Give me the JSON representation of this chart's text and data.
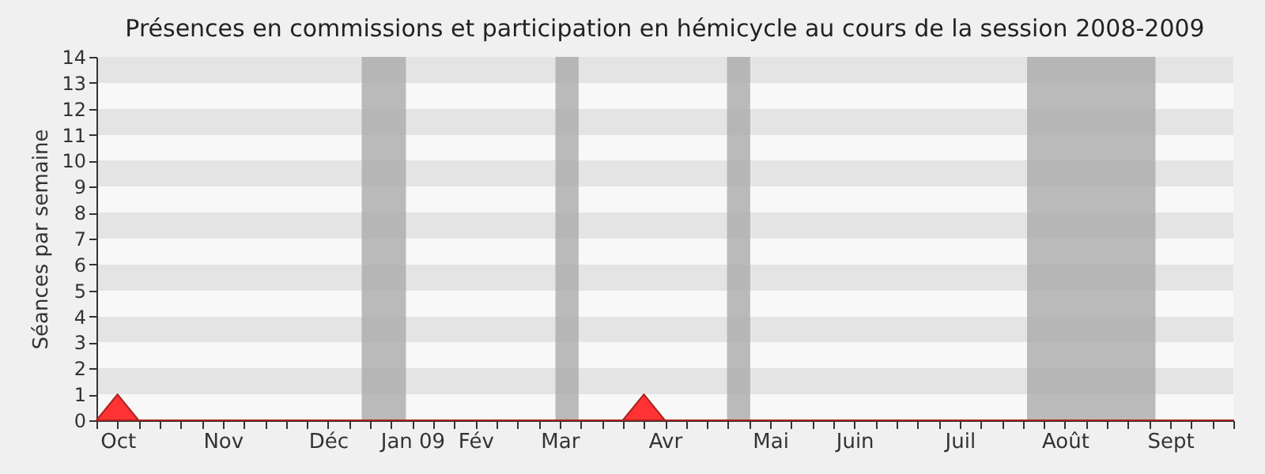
{
  "chart_data": {
    "type": "area",
    "title": "Présences en commissions et participation en hémicycle au cours de la session 2008-2009",
    "ylabel": "Séances par semaine",
    "categories": [
      null,
      "Oct",
      null,
      null,
      null,
      null,
      "Nov",
      null,
      null,
      null,
      null,
      "Déc",
      null,
      null,
      null,
      "Jan 09",
      null,
      null,
      "Fév",
      null,
      null,
      null,
      "Mar",
      null,
      null,
      null,
      null,
      "Avr",
      null,
      null,
      null,
      null,
      "Mai",
      null,
      null,
      null,
      "Juin",
      null,
      null,
      null,
      null,
      "Juil",
      null,
      null,
      null,
      null,
      "Août",
      null,
      null,
      null,
      null,
      "Sept",
      null,
      null,
      null
    ],
    "series": [
      {
        "color": "#ff3333",
        "values": [
          0,
          1,
          0,
          0,
          0,
          0,
          0,
          0,
          0,
          0,
          0,
          0,
          0,
          0,
          0,
          0,
          0,
          0,
          0,
          0,
          0,
          0,
          0,
          0,
          0,
          0,
          1,
          0,
          0,
          0,
          0,
          0,
          0,
          0,
          0,
          0,
          0,
          0,
          0,
          0,
          0,
          0,
          0,
          0,
          0,
          0,
          0,
          0,
          0,
          0,
          0,
          0,
          0,
          0,
          0
        ]
      }
    ],
    "ylim": [
      0,
      14
    ],
    "yticks": [
      0,
      1,
      2,
      3,
      4,
      5,
      6,
      7,
      8,
      9,
      10,
      11,
      12,
      13,
      14
    ]
  }
}
